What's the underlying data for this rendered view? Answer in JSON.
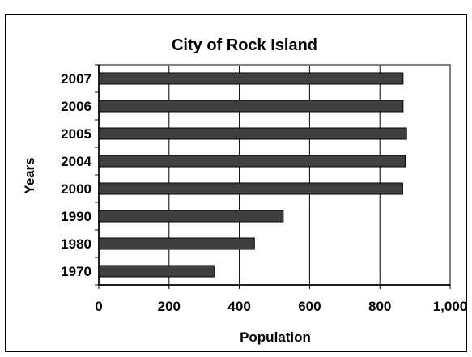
{
  "chart_data": {
    "type": "bar",
    "orientation": "horizontal",
    "title": "City of Rock Island",
    "xlabel": "Population",
    "ylabel": "Years",
    "categories": [
      "1970",
      "1980",
      "1990",
      "2000",
      "2004",
      "2005",
      "2006",
      "2007"
    ],
    "values": [
      328,
      443,
      525,
      865,
      872,
      876,
      866,
      866
    ],
    "xlim": [
      0,
      1000
    ],
    "x_ticks": [
      "0",
      "200",
      "400",
      "600",
      "800",
      "1,000"
    ],
    "grid": "vertical",
    "legend": "none",
    "colors": {
      "bar_fill": "#3f3f3f",
      "bar_stroke": "#000000",
      "gridline": "#000000",
      "plot_border": "#808080"
    }
  }
}
